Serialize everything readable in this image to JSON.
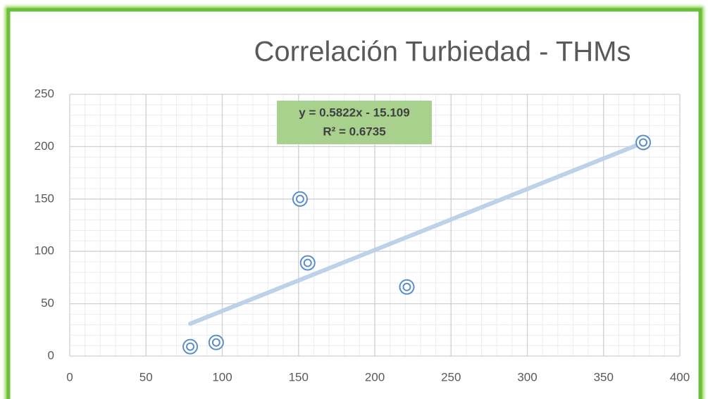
{
  "chart_data": {
    "type": "scatter",
    "title": "Correlación Turbiedad - THMs",
    "x": [
      79,
      96,
      151,
      156,
      221,
      376
    ],
    "values": [
      9,
      13,
      150,
      89,
      66,
      204
    ],
    "color": "#5b8ec9",
    "xlim": [
      0,
      400
    ],
    "xticks": [
      0,
      50,
      100,
      150,
      200,
      250,
      300,
      350,
      400
    ],
    "ylim": [
      0,
      250
    ],
    "yticks": [
      0,
      50,
      100,
      150,
      200,
      250
    ],
    "grid": true,
    "minor_grid": true,
    "trendline": {
      "slope": 0.5822,
      "intercept": -15.109,
      "equation": "y = 0.5822x - 15.109",
      "r_squared": 0.6735,
      "r_squared_label": "R² = 0.6735",
      "color": "#bcd2e9",
      "box_color": "#a9d18e"
    }
  }
}
